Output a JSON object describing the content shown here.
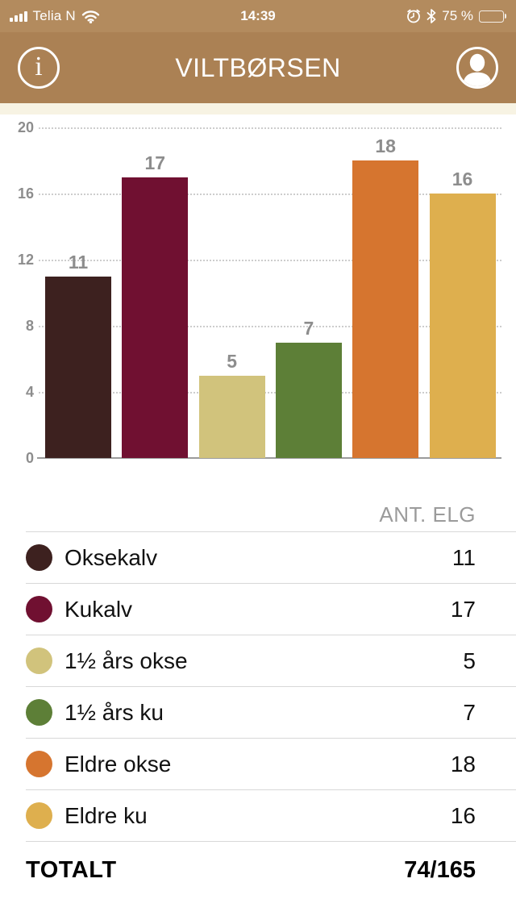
{
  "status_bar": {
    "carrier": "Telia N",
    "time": "14:39",
    "battery_percent": "75 %",
    "battery_level": 0.75
  },
  "header": {
    "title": "VILTBØRSEN",
    "info_glyph": "i"
  },
  "chart_data": {
    "type": "bar",
    "categories": [
      "Oksekalv",
      "Kukalv",
      "1½ års okse",
      "1½ års ku",
      "Eldre okse",
      "Eldre ku"
    ],
    "values": [
      11,
      17,
      5,
      7,
      18,
      16
    ],
    "colors": [
      "#3d211f",
      "#701031",
      "#d1c37c",
      "#5d7f37",
      "#d6752f",
      "#deaf4e"
    ],
    "title": "",
    "xlabel": "",
    "ylabel": "",
    "ylim": [
      0,
      20
    ],
    "yticks": [
      0,
      4,
      8,
      12,
      16,
      20
    ],
    "grid": "horizontal-dotted",
    "value_labels": true,
    "legend_position": "table-below"
  },
  "legend_table": {
    "column_header": "ANT. ELG",
    "rows": [
      {
        "label": "Oksekalv",
        "value": "11",
        "color": "#3d211f"
      },
      {
        "label": "Kukalv",
        "value": "17",
        "color": "#701031"
      },
      {
        "label": "1½ års okse",
        "value": "5",
        "color": "#d1c37c"
      },
      {
        "label": "1½ års ku",
        "value": "7",
        "color": "#5d7f37"
      },
      {
        "label": "Eldre okse",
        "value": "18",
        "color": "#d6752f"
      },
      {
        "label": "Eldre ku",
        "value": "16",
        "color": "#deaf4e"
      }
    ],
    "total": {
      "label": "TOTALT",
      "value": "74/165"
    }
  },
  "colors": {
    "status_bar_bg": "#b38b5e",
    "header_bg": "#ab8154",
    "cream_band": "#f7f3e3",
    "axis_text": "#8d8d8d",
    "divider": "#d8d8d8"
  }
}
